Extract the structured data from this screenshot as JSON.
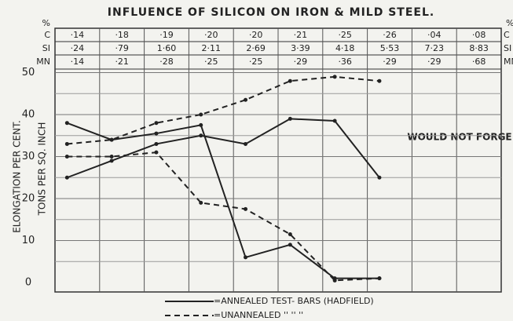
{
  "chart_data": {
    "type": "line",
    "title": "INFLUENCE OF SILICON ON IRON & MILD STEEL.",
    "table": {
      "unit": "%",
      "row_labels": [
        "C",
        "SI",
        "MN"
      ],
      "rows": [
        [
          "·14",
          "·18",
          "·19",
          "·20",
          "·20",
          "·21",
          "·25",
          "·26",
          "·04",
          "·08"
        ],
        [
          "·24",
          "·79",
          "1·60",
          "2·11",
          "2·69",
          "3·39",
          "4·18",
          "5·53",
          "7·23",
          "8·83"
        ],
        [
          "·14",
          "·21",
          "·28",
          "·25",
          "·25",
          "·29",
          "·36",
          "·29",
          "·29",
          "·68"
        ]
      ]
    },
    "ylabel": "ELONGATION PER CENT.",
    "y2label": "TONS PER SQ. INCH",
    "ylim": [
      0,
      50
    ],
    "yticks": [
      0,
      10,
      20,
      30,
      40,
      50
    ],
    "minor_yticks": [
      5,
      15,
      25,
      35,
      45
    ],
    "grid": true,
    "annotation": "WOULD NOT FORGE",
    "series": [
      {
        "style": "solid",
        "color": "#222222",
        "values": [
          38,
          34,
          35.5,
          37.5,
          6,
          9,
          1,
          1,
          null,
          null
        ]
      },
      {
        "style": "solid",
        "color": "#222222",
        "values": [
          25,
          29,
          33,
          35,
          33,
          39,
          38.5,
          25,
          null,
          null
        ]
      },
      {
        "style": "dashed",
        "color": "#222222",
        "values": [
          33,
          34,
          38,
          40,
          43.5,
          48,
          49,
          48,
          null,
          null
        ]
      },
      {
        "style": "dashed",
        "color": "#222222",
        "values": [
          30,
          30,
          31,
          19,
          17.5,
          11.5,
          0.5,
          1,
          null,
          null
        ]
      }
    ],
    "legend": [
      {
        "style": "solid",
        "label": "=ANNEALED TEST- BARS (HADFIELD)"
      },
      {
        "style": "dashed",
        "label": "=UNANNEALED ''     ''     ''"
      }
    ]
  }
}
